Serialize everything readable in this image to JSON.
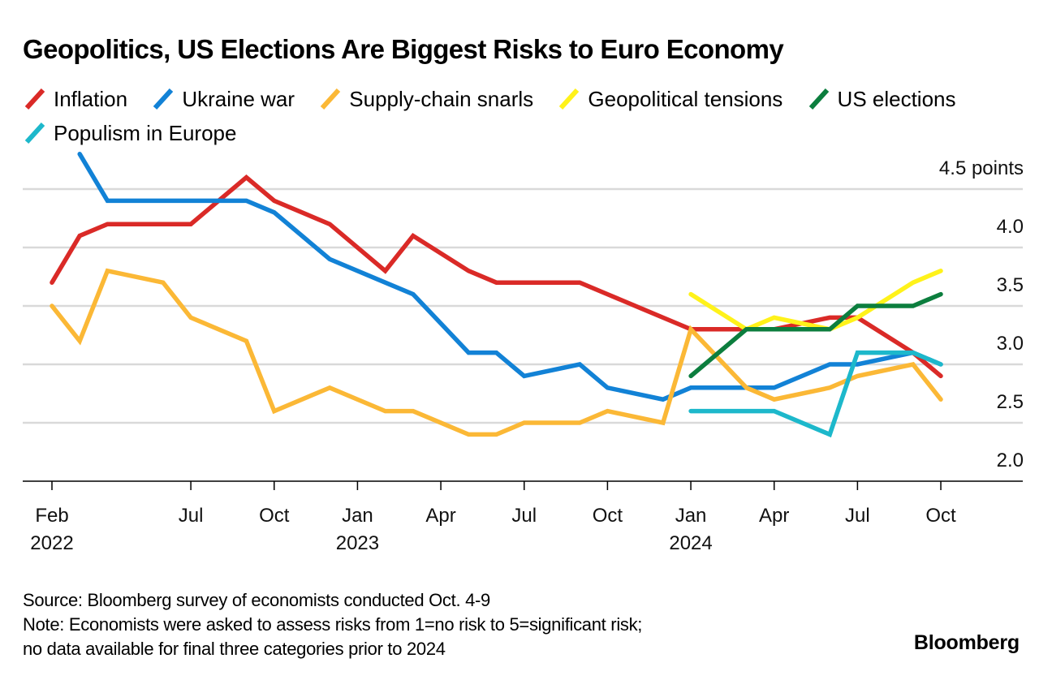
{
  "chart_data": {
    "type": "line",
    "title": "Geopolitics, US Elections Are Biggest Risks to Euro Economy",
    "ylabel": "points",
    "ylim": [
      2.0,
      4.5
    ],
    "yticks": [
      {
        "value": 4.5,
        "label": "4.5 points"
      },
      {
        "value": 4.0,
        "label": "4.0"
      },
      {
        "value": 3.5,
        "label": "3.5"
      },
      {
        "value": 3.0,
        "label": "3.0"
      },
      {
        "value": 2.5,
        "label": "2.5"
      },
      {
        "value": 2.0,
        "label": "2.0"
      }
    ],
    "grid": true,
    "legend_position": "top-left",
    "xticks": [
      {
        "date": "2022-02",
        "label": "Feb",
        "year": "2022"
      },
      {
        "date": "2022-07",
        "label": "Jul",
        "year": ""
      },
      {
        "date": "2022-10",
        "label": "Oct",
        "year": ""
      },
      {
        "date": "2023-01",
        "label": "Jan",
        "year": "2023"
      },
      {
        "date": "2023-04",
        "label": "Apr",
        "year": ""
      },
      {
        "date": "2023-07",
        "label": "Jul",
        "year": ""
      },
      {
        "date": "2023-10",
        "label": "Oct",
        "year": ""
      },
      {
        "date": "2024-01",
        "label": "Jan",
        "year": "2024"
      },
      {
        "date": "2024-04",
        "label": "Apr",
        "year": ""
      },
      {
        "date": "2024-07",
        "label": "Jul",
        "year": ""
      },
      {
        "date": "2024-10",
        "label": "Oct",
        "year": ""
      }
    ],
    "x": [
      "2022-02",
      "2022-03",
      "2022-04",
      "2022-06",
      "2022-07",
      "2022-09",
      "2022-10",
      "2022-12",
      "2023-02",
      "2023-03",
      "2023-05",
      "2023-06",
      "2023-07",
      "2023-09",
      "2023-10",
      "2023-12",
      "2024-01",
      "2024-03",
      "2024-04",
      "2024-06",
      "2024-07",
      "2024-09",
      "2024-10"
    ],
    "series": [
      {
        "name": "Inflation",
        "color": "#DA2A27",
        "values": [
          3.7,
          4.1,
          4.2,
          4.2,
          4.2,
          4.6,
          4.4,
          4.2,
          3.8,
          4.1,
          3.8,
          3.7,
          3.7,
          3.7,
          3.6,
          3.4,
          3.3,
          3.3,
          3.3,
          3.4,
          3.4,
          3.1,
          2.9
        ]
      },
      {
        "name": "Ukraine war",
        "color": "#1282D6",
        "values": [
          null,
          4.8,
          4.4,
          4.4,
          4.4,
          4.4,
          4.3,
          3.9,
          3.7,
          3.6,
          3.1,
          3.1,
          2.9,
          3.0,
          2.8,
          2.7,
          2.8,
          2.8,
          2.8,
          3.0,
          3.0,
          3.1,
          3.0
        ]
      },
      {
        "name": "Supply-chain snarls",
        "color": "#FBB836",
        "values": [
          3.5,
          3.2,
          3.8,
          3.7,
          3.4,
          3.2,
          2.6,
          2.8,
          2.6,
          2.6,
          2.4,
          2.4,
          2.5,
          2.5,
          2.6,
          2.5,
          3.3,
          2.8,
          2.7,
          2.8,
          2.9,
          3.0,
          2.7
        ]
      },
      {
        "name": "Geopolitical tensions",
        "color": "#FFF21A",
        "values": [
          null,
          null,
          null,
          null,
          null,
          null,
          null,
          null,
          null,
          null,
          null,
          null,
          null,
          null,
          null,
          null,
          3.6,
          3.3,
          3.4,
          3.3,
          3.4,
          3.7,
          3.8
        ]
      },
      {
        "name": "US elections",
        "color": "#0C7E3E",
        "values": [
          null,
          null,
          null,
          null,
          null,
          null,
          null,
          null,
          null,
          null,
          null,
          null,
          null,
          null,
          null,
          null,
          2.9,
          3.3,
          3.3,
          3.3,
          3.5,
          3.5,
          3.6
        ]
      },
      {
        "name": "Populism in Europe",
        "color": "#1DB8CB",
        "values": [
          null,
          null,
          null,
          null,
          null,
          null,
          null,
          null,
          null,
          null,
          null,
          null,
          null,
          null,
          null,
          null,
          2.6,
          2.6,
          2.6,
          2.4,
          3.1,
          3.1,
          3.0
        ]
      }
    ],
    "source": "Source: Bloomberg survey of economists conducted Oct. 4-9",
    "note_line1": "Note: Economists were asked to assess risks from 1=no risk to 5=significant risk;",
    "note_line2": "no data available for final three categories prior to 2024"
  },
  "branding": {
    "logo": "Bloomberg"
  }
}
